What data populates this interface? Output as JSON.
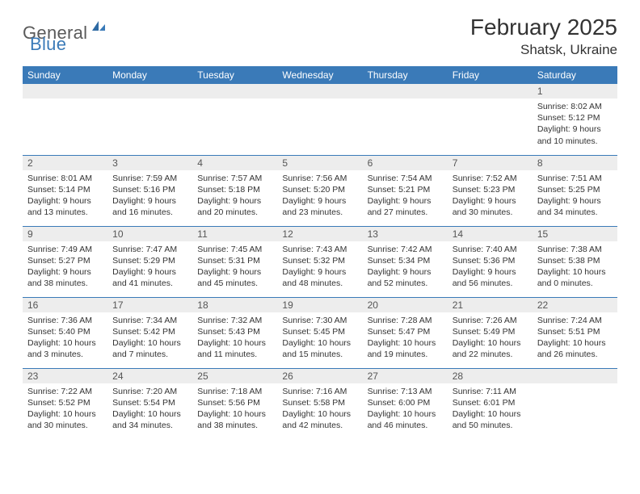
{
  "brand": {
    "part1": "General",
    "part2": "Blue"
  },
  "title": "February 2025",
  "location": "Shatsk, Ukraine",
  "colors": {
    "header_bg": "#3a7ab8",
    "header_text": "#ffffff",
    "daynum_bg": "#ededed",
    "border": "#3a7ab8",
    "text": "#333333",
    "logo_gray": "#5a5a5a",
    "logo_blue": "#3a7ab8"
  },
  "day_headers": [
    "Sunday",
    "Monday",
    "Tuesday",
    "Wednesday",
    "Thursday",
    "Friday",
    "Saturday"
  ],
  "weeks": [
    [
      {
        "n": "",
        "sr": "",
        "ss": "",
        "dl": ""
      },
      {
        "n": "",
        "sr": "",
        "ss": "",
        "dl": ""
      },
      {
        "n": "",
        "sr": "",
        "ss": "",
        "dl": ""
      },
      {
        "n": "",
        "sr": "",
        "ss": "",
        "dl": ""
      },
      {
        "n": "",
        "sr": "",
        "ss": "",
        "dl": ""
      },
      {
        "n": "",
        "sr": "",
        "ss": "",
        "dl": ""
      },
      {
        "n": "1",
        "sr": "Sunrise: 8:02 AM",
        "ss": "Sunset: 5:12 PM",
        "dl": "Daylight: 9 hours and 10 minutes."
      }
    ],
    [
      {
        "n": "2",
        "sr": "Sunrise: 8:01 AM",
        "ss": "Sunset: 5:14 PM",
        "dl": "Daylight: 9 hours and 13 minutes."
      },
      {
        "n": "3",
        "sr": "Sunrise: 7:59 AM",
        "ss": "Sunset: 5:16 PM",
        "dl": "Daylight: 9 hours and 16 minutes."
      },
      {
        "n": "4",
        "sr": "Sunrise: 7:57 AM",
        "ss": "Sunset: 5:18 PM",
        "dl": "Daylight: 9 hours and 20 minutes."
      },
      {
        "n": "5",
        "sr": "Sunrise: 7:56 AM",
        "ss": "Sunset: 5:20 PM",
        "dl": "Daylight: 9 hours and 23 minutes."
      },
      {
        "n": "6",
        "sr": "Sunrise: 7:54 AM",
        "ss": "Sunset: 5:21 PM",
        "dl": "Daylight: 9 hours and 27 minutes."
      },
      {
        "n": "7",
        "sr": "Sunrise: 7:52 AM",
        "ss": "Sunset: 5:23 PM",
        "dl": "Daylight: 9 hours and 30 minutes."
      },
      {
        "n": "8",
        "sr": "Sunrise: 7:51 AM",
        "ss": "Sunset: 5:25 PM",
        "dl": "Daylight: 9 hours and 34 minutes."
      }
    ],
    [
      {
        "n": "9",
        "sr": "Sunrise: 7:49 AM",
        "ss": "Sunset: 5:27 PM",
        "dl": "Daylight: 9 hours and 38 minutes."
      },
      {
        "n": "10",
        "sr": "Sunrise: 7:47 AM",
        "ss": "Sunset: 5:29 PM",
        "dl": "Daylight: 9 hours and 41 minutes."
      },
      {
        "n": "11",
        "sr": "Sunrise: 7:45 AM",
        "ss": "Sunset: 5:31 PM",
        "dl": "Daylight: 9 hours and 45 minutes."
      },
      {
        "n": "12",
        "sr": "Sunrise: 7:43 AM",
        "ss": "Sunset: 5:32 PM",
        "dl": "Daylight: 9 hours and 48 minutes."
      },
      {
        "n": "13",
        "sr": "Sunrise: 7:42 AM",
        "ss": "Sunset: 5:34 PM",
        "dl": "Daylight: 9 hours and 52 minutes."
      },
      {
        "n": "14",
        "sr": "Sunrise: 7:40 AM",
        "ss": "Sunset: 5:36 PM",
        "dl": "Daylight: 9 hours and 56 minutes."
      },
      {
        "n": "15",
        "sr": "Sunrise: 7:38 AM",
        "ss": "Sunset: 5:38 PM",
        "dl": "Daylight: 10 hours and 0 minutes."
      }
    ],
    [
      {
        "n": "16",
        "sr": "Sunrise: 7:36 AM",
        "ss": "Sunset: 5:40 PM",
        "dl": "Daylight: 10 hours and 3 minutes."
      },
      {
        "n": "17",
        "sr": "Sunrise: 7:34 AM",
        "ss": "Sunset: 5:42 PM",
        "dl": "Daylight: 10 hours and 7 minutes."
      },
      {
        "n": "18",
        "sr": "Sunrise: 7:32 AM",
        "ss": "Sunset: 5:43 PM",
        "dl": "Daylight: 10 hours and 11 minutes."
      },
      {
        "n": "19",
        "sr": "Sunrise: 7:30 AM",
        "ss": "Sunset: 5:45 PM",
        "dl": "Daylight: 10 hours and 15 minutes."
      },
      {
        "n": "20",
        "sr": "Sunrise: 7:28 AM",
        "ss": "Sunset: 5:47 PM",
        "dl": "Daylight: 10 hours and 19 minutes."
      },
      {
        "n": "21",
        "sr": "Sunrise: 7:26 AM",
        "ss": "Sunset: 5:49 PM",
        "dl": "Daylight: 10 hours and 22 minutes."
      },
      {
        "n": "22",
        "sr": "Sunrise: 7:24 AM",
        "ss": "Sunset: 5:51 PM",
        "dl": "Daylight: 10 hours and 26 minutes."
      }
    ],
    [
      {
        "n": "23",
        "sr": "Sunrise: 7:22 AM",
        "ss": "Sunset: 5:52 PM",
        "dl": "Daylight: 10 hours and 30 minutes."
      },
      {
        "n": "24",
        "sr": "Sunrise: 7:20 AM",
        "ss": "Sunset: 5:54 PM",
        "dl": "Daylight: 10 hours and 34 minutes."
      },
      {
        "n": "25",
        "sr": "Sunrise: 7:18 AM",
        "ss": "Sunset: 5:56 PM",
        "dl": "Daylight: 10 hours and 38 minutes."
      },
      {
        "n": "26",
        "sr": "Sunrise: 7:16 AM",
        "ss": "Sunset: 5:58 PM",
        "dl": "Daylight: 10 hours and 42 minutes."
      },
      {
        "n": "27",
        "sr": "Sunrise: 7:13 AM",
        "ss": "Sunset: 6:00 PM",
        "dl": "Daylight: 10 hours and 46 minutes."
      },
      {
        "n": "28",
        "sr": "Sunrise: 7:11 AM",
        "ss": "Sunset: 6:01 PM",
        "dl": "Daylight: 10 hours and 50 minutes."
      },
      {
        "n": "",
        "sr": "",
        "ss": "",
        "dl": ""
      }
    ]
  ]
}
